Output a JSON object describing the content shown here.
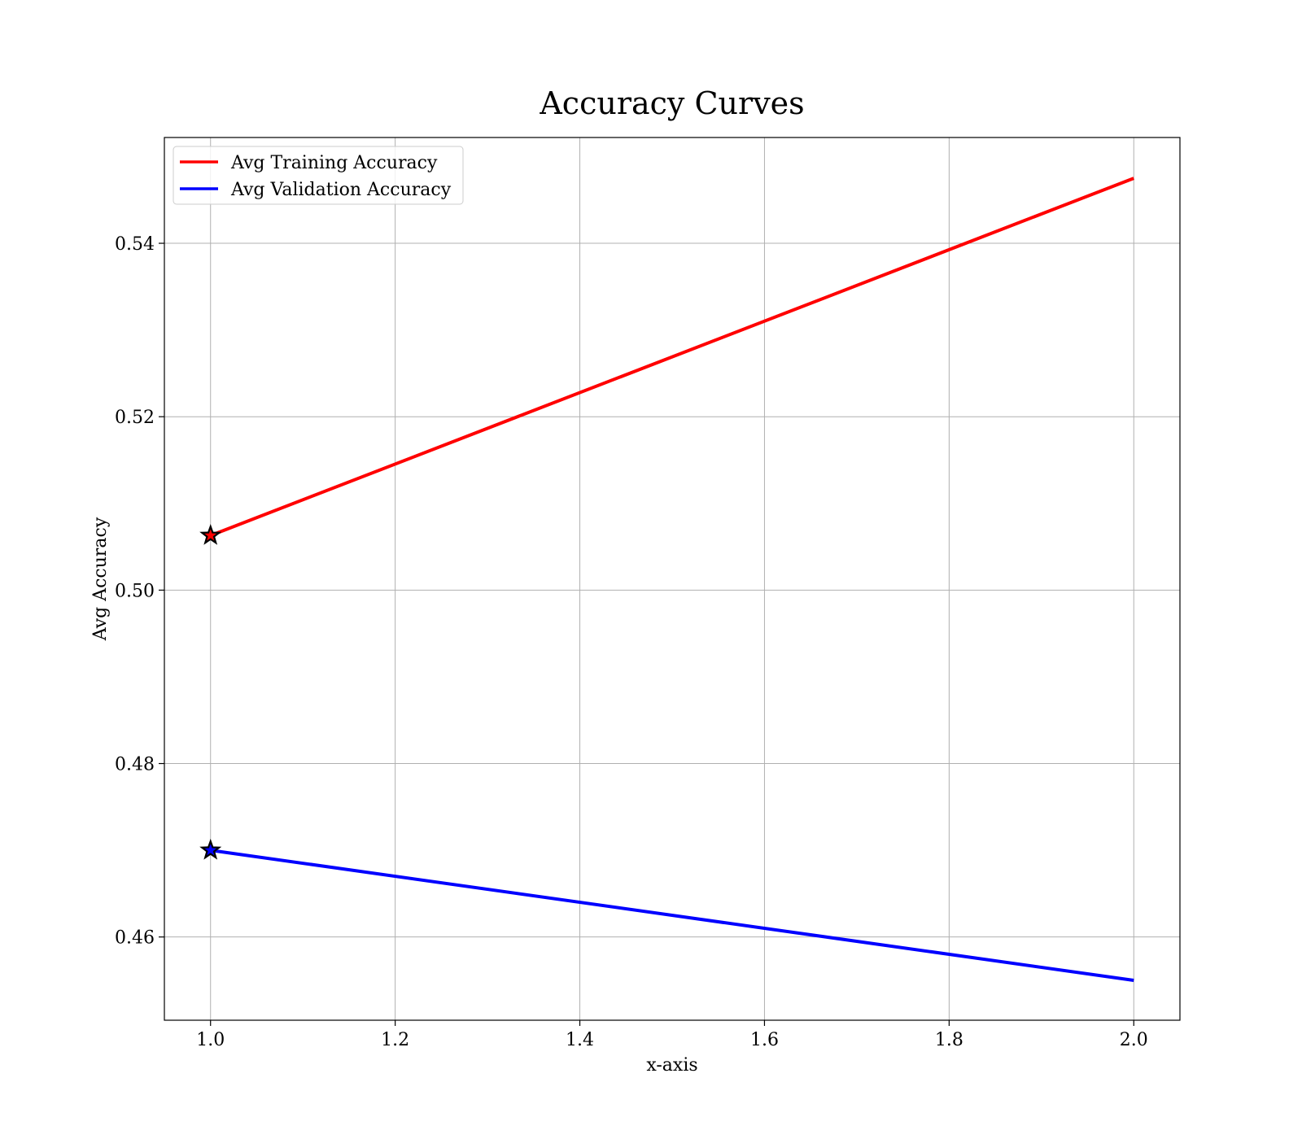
{
  "chart_data": {
    "type": "line",
    "title": "Accuracy Curves",
    "xlabel": "x-axis",
    "ylabel": "Avg Accuracy",
    "xlim": [
      0.95,
      2.05
    ],
    "ylim": [
      0.4504,
      0.5522
    ],
    "x_ticks": [
      1.0,
      1.2,
      1.4,
      1.6,
      1.8,
      2.0
    ],
    "x_tick_labels": [
      "1.0",
      "1.2",
      "1.4",
      "1.6",
      "1.8",
      "2.0"
    ],
    "y_ticks": [
      0.46,
      0.48,
      0.5,
      0.52,
      0.54
    ],
    "y_tick_labels": [
      "0.46",
      "0.48",
      "0.50",
      "0.52",
      "0.54"
    ],
    "grid": true,
    "legend_position": "top-left",
    "series": [
      {
        "name": "Avg Training Accuracy",
        "color": "#ff0000",
        "x": [
          1.0,
          2.0
        ],
        "values": [
          0.5063,
          0.5475
        ],
        "best_marker": "star",
        "best_x": 1.0,
        "best_value": 0.5063
      },
      {
        "name": "Avg Validation Accuracy",
        "color": "#0000ff",
        "x": [
          1.0,
          2.0
        ],
        "values": [
          0.47,
          0.455
        ],
        "best_marker": "star",
        "best_x": 1.0,
        "best_value": 0.47
      }
    ]
  }
}
